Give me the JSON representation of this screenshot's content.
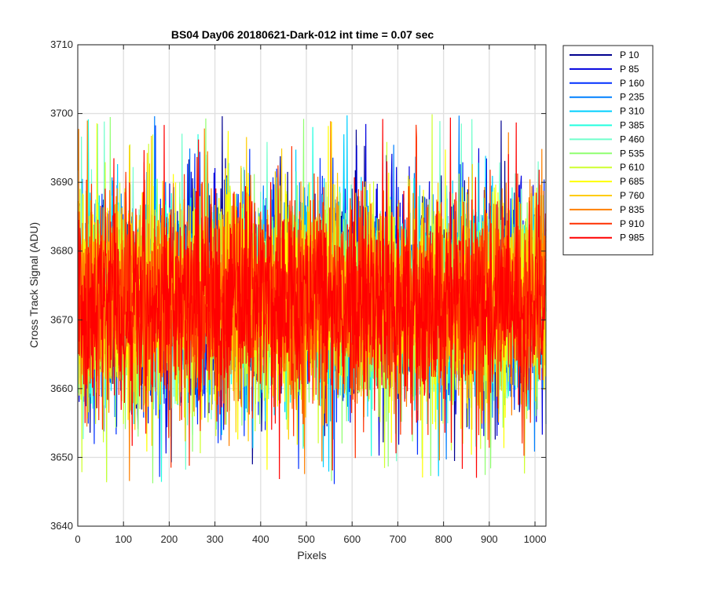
{
  "chart_data": {
    "type": "line",
    "title": "BS04 Day06 20180621-Dark-012 int time = 0.07 sec",
    "xlabel": "Pixels",
    "ylabel": "Cross Track Signal (ADU)",
    "xlim": [
      0,
      1024
    ],
    "ylim": [
      3640,
      3710
    ],
    "xticks": [
      0,
      100,
      200,
      300,
      400,
      500,
      600,
      700,
      800,
      900,
      1000
    ],
    "yticks": [
      3640,
      3650,
      3660,
      3670,
      3680,
      3690,
      3700,
      3710
    ],
    "grid": true,
    "legend_location": "outside-top-right",
    "series_mean": 3673,
    "series_noise_range": [
      3646,
      3703
    ],
    "points_per_series": 1024,
    "series": [
      {
        "name": "P 10",
        "color": "#00008f"
      },
      {
        "name": "P 85",
        "color": "#0000df"
      },
      {
        "name": "P 160",
        "color": "#0030ff"
      },
      {
        "name": "P 235",
        "color": "#0080ff"
      },
      {
        "name": "P 310",
        "color": "#00cfff"
      },
      {
        "name": "P 385",
        "color": "#20ffdf"
      },
      {
        "name": "P 460",
        "color": "#70ffcc"
      },
      {
        "name": "P 535",
        "color": "#90ff70"
      },
      {
        "name": "P 610",
        "color": "#cfff30"
      },
      {
        "name": "P 685",
        "color": "#ffff00"
      },
      {
        "name": "P 760",
        "color": "#ffcc00"
      },
      {
        "name": "P 835",
        "color": "#ff8000"
      },
      {
        "name": "P 910",
        "color": "#ff3000"
      },
      {
        "name": "P 985",
        "color": "#ff0000"
      }
    ]
  }
}
